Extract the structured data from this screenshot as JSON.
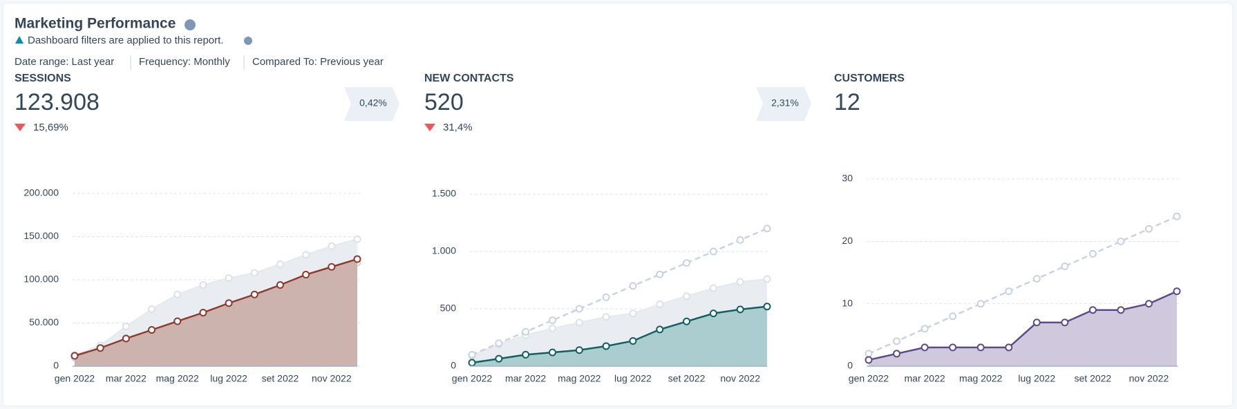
{
  "title": "Marketing Performance",
  "notice": "Dashboard filters are applied to this report.",
  "filters": [
    "Date range: Last year",
    "Frequency: Monthly",
    "Compared To: Previous year"
  ],
  "kpis": [
    {
      "label": "SESSIONS",
      "value": "123.908",
      "change": "15,69%",
      "badge": "0,42%"
    },
    {
      "label": "NEW CONTACTS",
      "value": "520",
      "change": "31,4%",
      "badge": "2,31%"
    },
    {
      "label": "CUSTOMERS",
      "value": "12"
    }
  ],
  "chart_data": [
    {
      "type": "line",
      "categories": [
        "gen 2022",
        null,
        "mar 2022",
        null,
        "mag 2022",
        null,
        "lug 2022",
        null,
        "set 2022",
        null,
        "nov 2022",
        null
      ],
      "ylim": [
        0,
        200000
      ],
      "yticks": [
        0,
        {
          "value": 50000,
          "label": "50.000"
        },
        {
          "value": 100000,
          "label": "100.000"
        },
        {
          "value": 150000,
          "label": "150.000"
        },
        {
          "value": 200000,
          "label": "200.000"
        }
      ],
      "grid": true,
      "series": [
        {
          "style": "area",
          "color": "#d7dde6",
          "fill": "#e9edf2",
          "values": [
            13000,
            24000,
            46000,
            66000,
            83000,
            94000,
            102000,
            108000,
            118000,
            129000,
            139000,
            147000
          ]
        },
        {
          "style": "dashed",
          "color": "#c9d2e0",
          "values": [
            10000,
            20000,
            30000,
            40000,
            50000,
            60000,
            70000,
            80000,
            90000,
            100000,
            110000,
            120000
          ]
        },
        {
          "style": "area-line",
          "color": "#8e3a2a",
          "fill": "#cbb0aa",
          "values": [
            12000,
            21000,
            32000,
            42000,
            52000,
            62000,
            73000,
            83000,
            94000,
            106000,
            115000,
            124000
          ]
        }
      ]
    },
    {
      "type": "line",
      "categories": [
        "gen 2022",
        null,
        "mar 2022",
        null,
        "mag 2022",
        null,
        "lug 2022",
        null,
        "set 2022",
        null,
        "nov 2022",
        null
      ],
      "ylim": [
        0,
        1500
      ],
      "yticks": [
        0,
        500,
        {
          "value": 1000,
          "label": "1.000"
        },
        {
          "value": 1500,
          "label": "1.500"
        }
      ],
      "grid": true,
      "series": [
        {
          "style": "area",
          "color": "#d7dde6",
          "fill": "#e9edf2",
          "values": [
            90,
            190,
            270,
            330,
            380,
            430,
            460,
            540,
            610,
            680,
            735,
            760
          ]
        },
        {
          "style": "dashed",
          "color": "#c9d2e0",
          "values": [
            100,
            200,
            300,
            400,
            500,
            600,
            700,
            800,
            900,
            1000,
            1100,
            1200
          ]
        },
        {
          "style": "area-line",
          "color": "#0f6060",
          "fill": "#a8cbcc",
          "values": [
            30,
            65,
            100,
            120,
            140,
            175,
            220,
            320,
            390,
            460,
            495,
            520
          ]
        }
      ]
    },
    {
      "type": "line",
      "categories": [
        "gen 2022",
        null,
        "mar 2022",
        null,
        "mag 2022",
        null,
        "lug 2022",
        null,
        "set 2022",
        null,
        "nov 2022",
        null
      ],
      "ylim": [
        0,
        30
      ],
      "yticks": [
        0,
        10,
        20,
        30
      ],
      "grid": true,
      "series": [
        {
          "style": "dashed",
          "color": "#c9d2e0",
          "values": [
            2,
            4,
            6,
            8,
            10,
            12,
            14,
            16,
            18,
            20,
            22,
            24
          ]
        },
        {
          "style": "area-line",
          "color": "#5b4b8a",
          "fill": "#cdc6dc",
          "values": [
            1,
            2,
            3,
            3,
            3,
            3,
            7,
            7,
            9,
            9,
            10,
            12
          ]
        }
      ]
    }
  ]
}
